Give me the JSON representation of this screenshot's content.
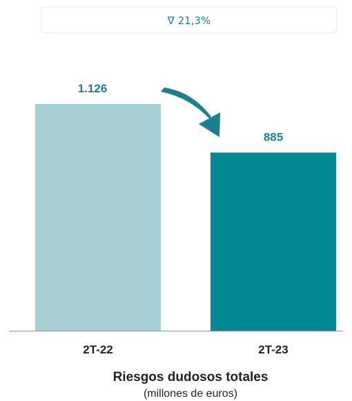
{
  "change_indicator": {
    "text": "∇ 21,3%"
  },
  "chart_data": {
    "type": "bar",
    "categories": [
      "2T-22",
      "2T-23"
    ],
    "values": [
      1126,
      885
    ],
    "value_labels": [
      "1.126",
      "885"
    ],
    "title": "Riesgos dudosos totales",
    "subtitle": "(millones de euros)",
    "xlabel": "",
    "ylabel": "",
    "ylim": [
      0,
      1300
    ],
    "grid": false,
    "bar_colors": [
      "#a7d0d5",
      "#008896"
    ],
    "label_color": "#1a7f8e",
    "arrow_color": "#1a7f8e",
    "change_box_text_color": "#1a7f8e"
  }
}
